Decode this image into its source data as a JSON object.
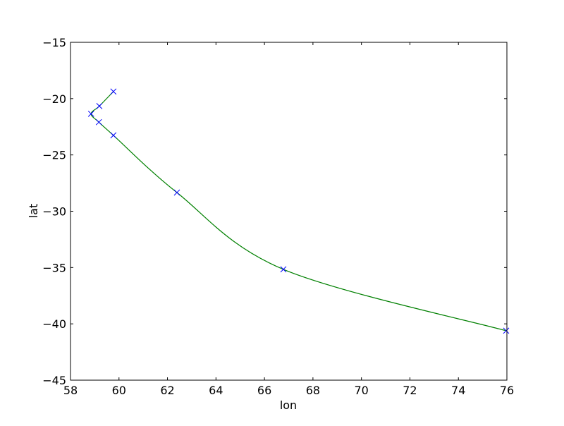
{
  "chart_data": {
    "type": "line",
    "title": "",
    "xlabel": "lon",
    "ylabel": "lat",
    "xlim": [
      58,
      76
    ],
    "ylim": [
      -45,
      -15
    ],
    "xticks": [
      58,
      60,
      62,
      64,
      66,
      68,
      70,
      72,
      74,
      76
    ],
    "yticks": [
      -45,
      -40,
      -35,
      -30,
      -25,
      -20,
      -15
    ],
    "xtick_labels": [
      "58",
      "60",
      "62",
      "64",
      "66",
      "68",
      "70",
      "72",
      "74",
      "76"
    ],
    "ytick_labels": [
      "−45",
      "−40",
      "−35",
      "−30",
      "−25",
      "−20",
      "−15"
    ],
    "grid": false,
    "series": [
      {
        "style": "markers-x",
        "color": "#0000ff",
        "x": [
          59.77,
          59.19,
          58.85,
          59.17,
          59.77,
          62.39,
          66.78,
          75.97
        ],
        "y": [
          -19.37,
          -20.66,
          -21.35,
          -22.09,
          -23.26,
          -28.34,
          -35.16,
          -40.61
        ]
      },
      {
        "style": "smooth-line",
        "color": "#008000",
        "x": [
          59.77,
          59.19,
          58.85,
          59.17,
          59.77,
          62.39,
          66.78,
          75.97
        ],
        "y": [
          -19.37,
          -20.66,
          -21.35,
          -22.09,
          -23.26,
          -28.34,
          -35.16,
          -40.61
        ]
      }
    ]
  }
}
